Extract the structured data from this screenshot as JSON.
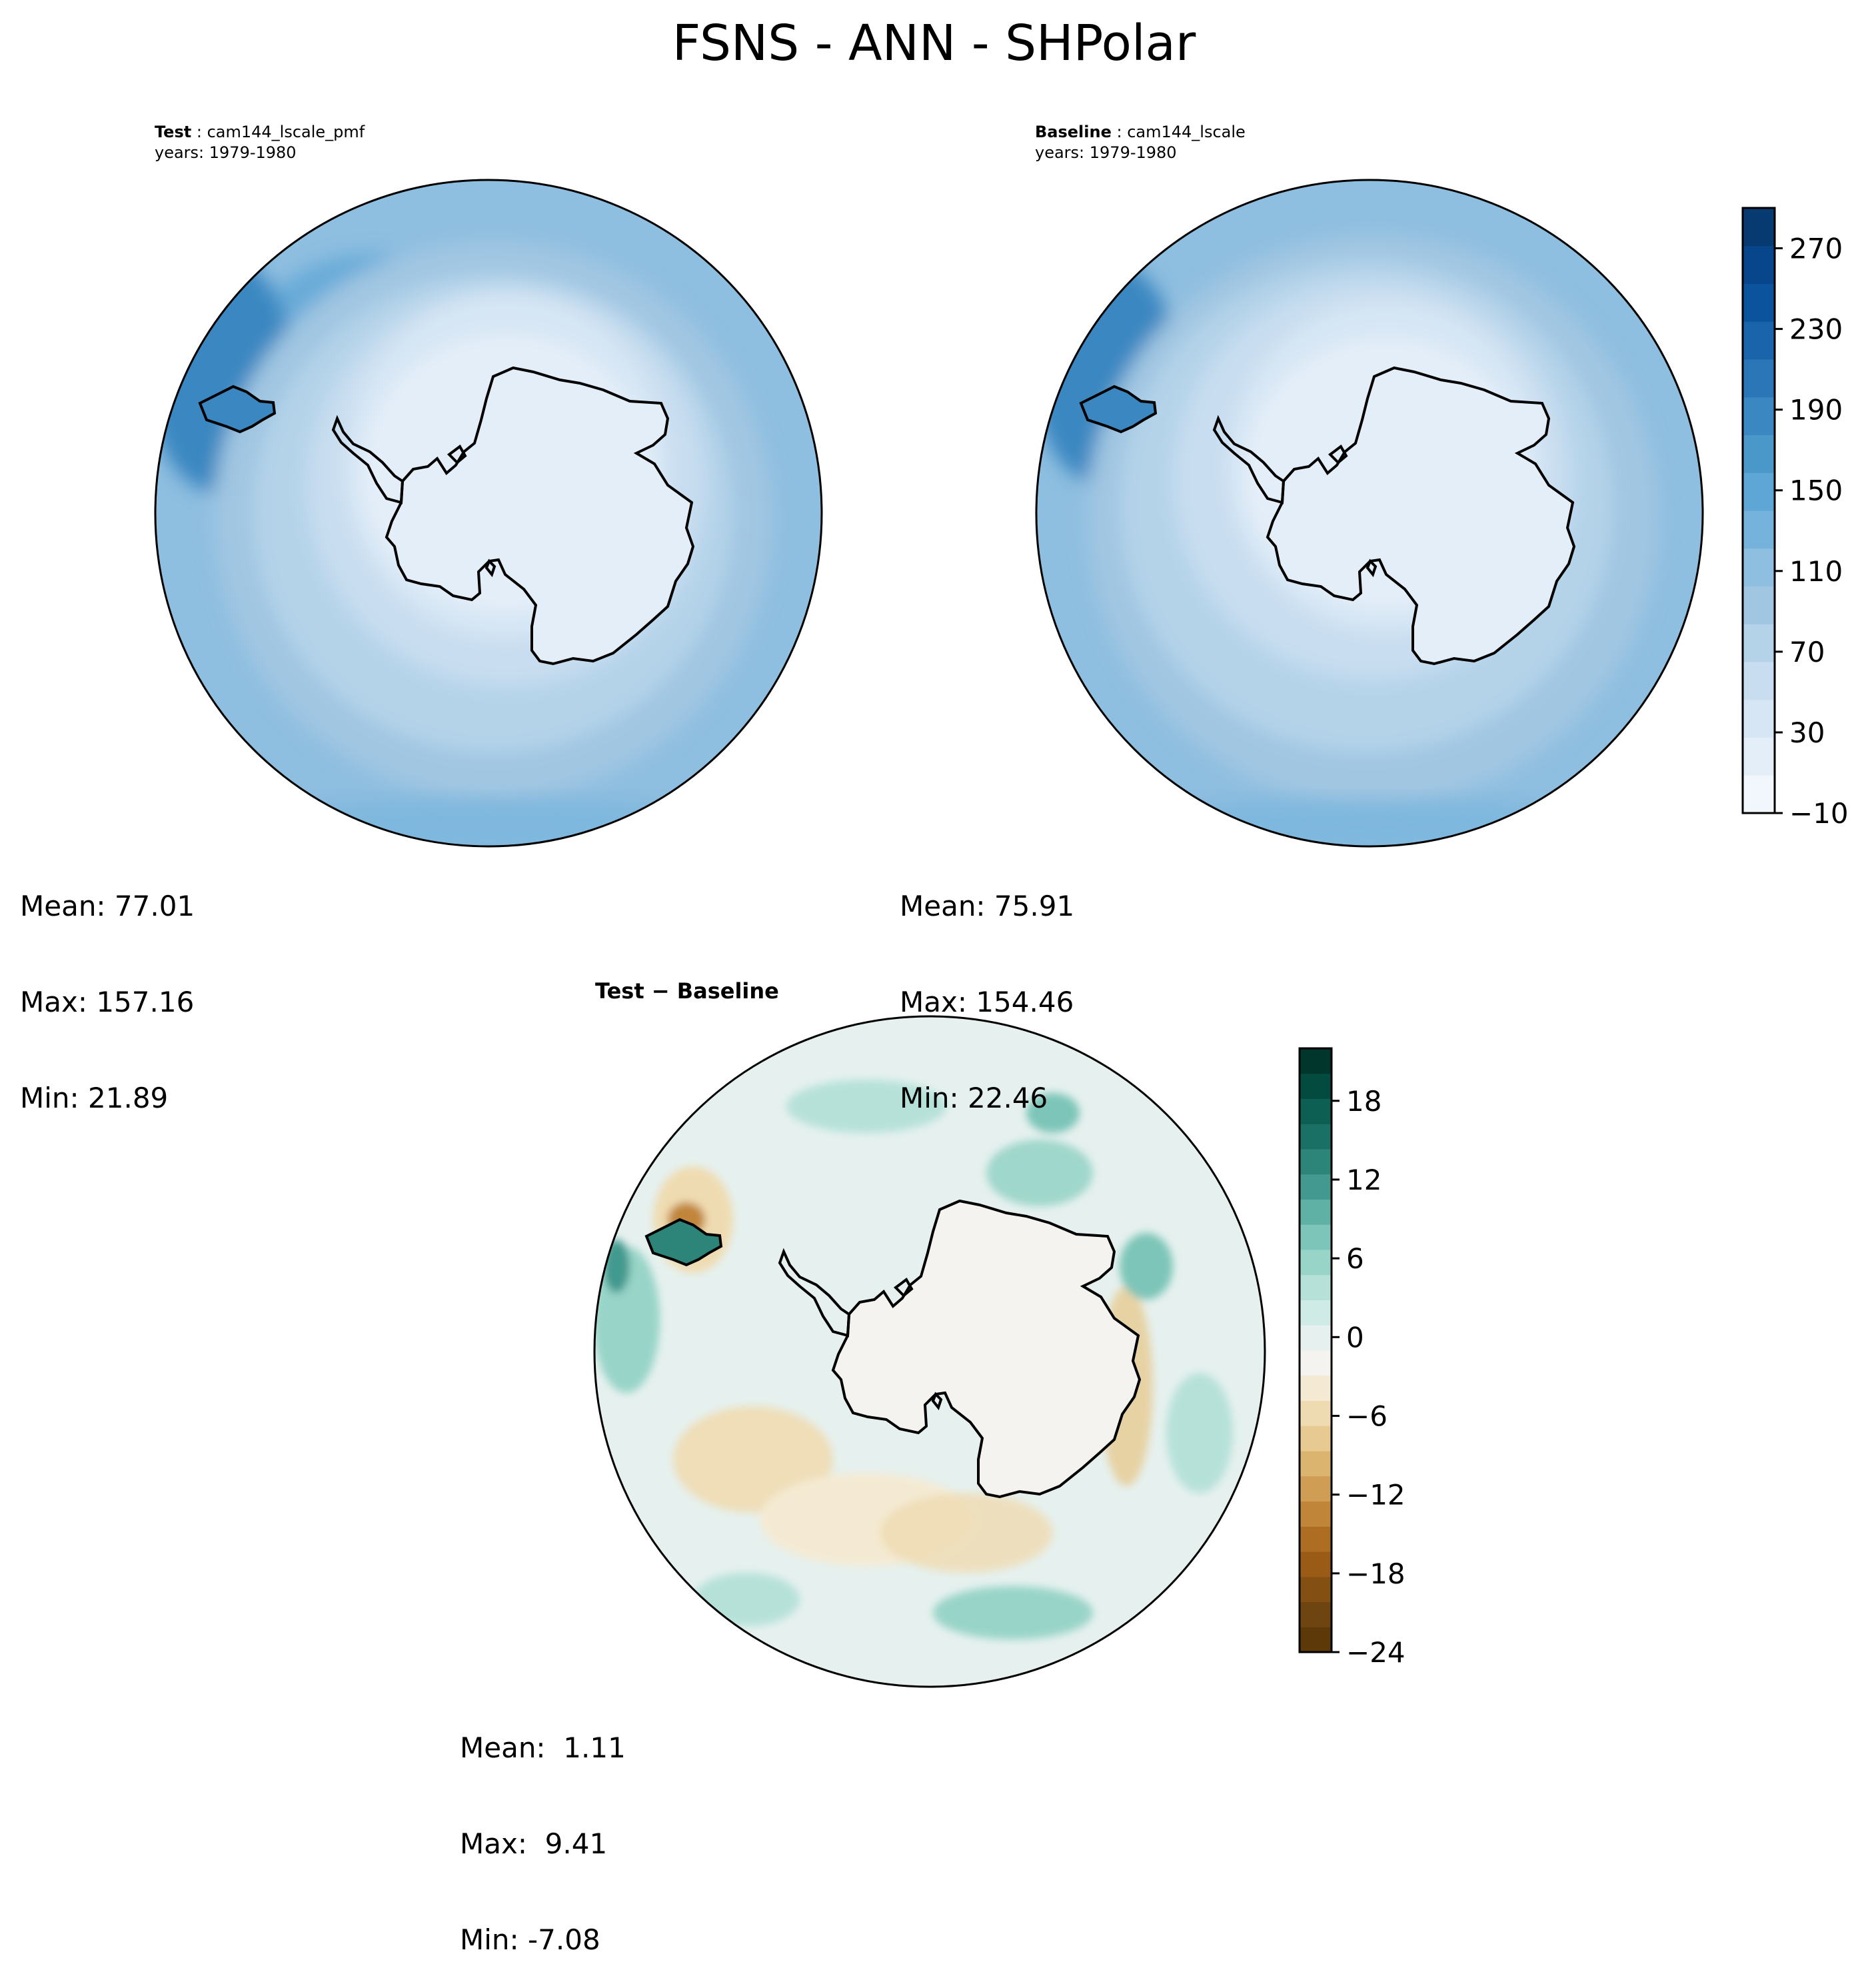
{
  "figure": {
    "title": "FSNS - ANN - SHPolar"
  },
  "panels": {
    "test": {
      "label": "Test",
      "run_name": "cam144_lscale_pmf",
      "years": "years: 1979-1980",
      "stats": {
        "mean": "Mean: 77.01",
        "max": "Max: 157.16",
        "min": "Min: 21.89"
      }
    },
    "baseline": {
      "label": "Baseline",
      "run_name": "cam144_lscale",
      "years": "years: 1979-1980",
      "stats": {
        "mean": "Mean: 75.91",
        "max": "Max: 154.46",
        "min": "Min: 22.46"
      }
    },
    "difference": {
      "label": "Test − Baseline",
      "stats": {
        "mean": "Mean:  1.11",
        "max": "Max:  9.41",
        "min": "Min: -7.08"
      }
    }
  },
  "colorbars": {
    "absolute": {
      "colormap": "Blues",
      "ticks": [
        "−10",
        "30",
        "70",
        "110",
        "150",
        "190",
        "230",
        "270"
      ],
      "levels": 15,
      "colors": [
        "#f2f7fd",
        "#e4eef9",
        "#d6e6f4",
        "#c8ddf0",
        "#b4d3e9",
        "#a0c6e2",
        "#8ebee0",
        "#75b3dc",
        "#5ea6d6",
        "#4a98c9",
        "#3a87c1",
        "#2a76b7",
        "#1a64ac",
        "#0c539e",
        "#08468b",
        "#083a72"
      ]
    },
    "difference": {
      "colormap": "BrBG",
      "ticks": [
        "−24",
        "−18",
        "−12",
        "−6",
        "0",
        "6",
        "12",
        "18"
      ],
      "colors": [
        "#5d3809",
        "#6e4410",
        "#844f12",
        "#9a5b16",
        "#ad6e24",
        "#c1853a",
        "#cf9d53",
        "#dbb46f",
        "#e7ca91",
        "#efdbb1",
        "#f4ead3",
        "#f4f3ef",
        "#e6f1ef",
        "#cfebe6",
        "#b6e1d9",
        "#98d4c8",
        "#7dc5b8",
        "#5fb1a5",
        "#43998f",
        "#2d8579",
        "#1a7064",
        "#0d5e53",
        "#034b3f",
        "#00362c"
      ]
    }
  },
  "chart_data": {
    "type": "heatmap",
    "projection": "South Polar Stereographic",
    "variable": "FSNS",
    "season": "ANN",
    "region": "SHPolar",
    "panels": [
      {
        "name": "Test",
        "run": "cam144_lscale_pmf",
        "years": "1979-1980",
        "mean": 77.01,
        "max": 157.16,
        "min": 21.89
      },
      {
        "name": "Baseline",
        "run": "cam144_lscale",
        "years": "1979-1980",
        "mean": 75.91,
        "max": 154.46,
        "min": 22.46
      },
      {
        "name": "Test − Baseline",
        "mean": 1.11,
        "max": 9.41,
        "min": -7.08
      }
    ],
    "colorbar_absolute": {
      "range": [
        -10,
        290
      ],
      "step": 20,
      "tick_values": [
        -10,
        30,
        70,
        110,
        150,
        190,
        230,
        270
      ]
    },
    "colorbar_difference": {
      "range": [
        -24,
        24
      ],
      "step": 2,
      "tick_values": [
        -24,
        -18,
        -12,
        -6,
        0,
        6,
        12,
        18
      ]
    }
  }
}
